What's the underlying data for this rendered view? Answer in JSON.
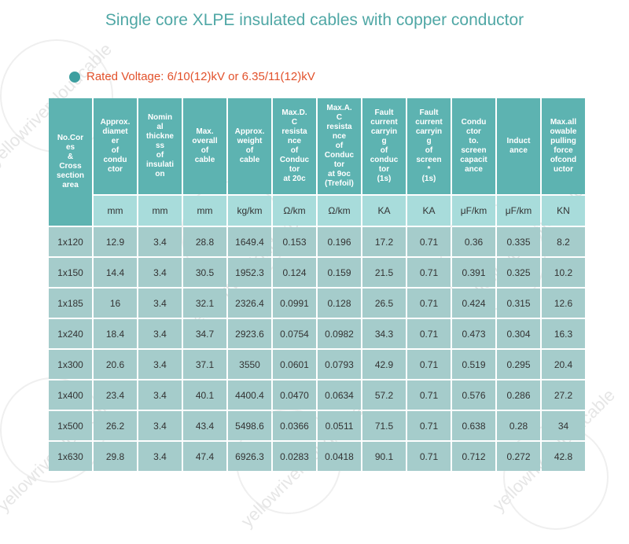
{
  "title": "Single core XLPE insulated cables with copper conductor",
  "rated_voltage": "Rated Voltage: 6/10(12)kV or 6.35/11(12)kV",
  "watermark": "yellowrivercloudcable",
  "colors": {
    "title": "#4fa7a5",
    "voltage": "#e2512b",
    "header_bg": "#5db3b1",
    "unit_bg": "#a8dcdb",
    "cell_bg": "#a5cccb",
    "bullet": "#3d9fa0"
  },
  "headers": [
    "No.Cores & Cross section area",
    "Approx. diameter of conductor",
    "Nominal thickness of insulation",
    "Max. overall of cable",
    "Approx. weight of cable",
    "Max.D.C resistance of Conductor at 20c",
    "Max.A.C resistance of Conductor at 9oc (Trefoil)",
    "Fault current carrying of conductor (1s)",
    "Fault current carrying of screen* (1s)",
    "Conductor to. screen capacitance",
    "Inductance",
    "Max.allowable pulling force ofconductor"
  ],
  "headers_display": [
    "No.Cor\nes\n&\nCross\nsection\narea",
    "Approx.\ndiamet\ner\nof\ncondu\nctor",
    "Nomin\nal\nthickne\nss\nof\ninsulati\non",
    "Max.\noverall\nof\ncable",
    "Approx.\nweight\nof\ncable",
    "Max.D.\nC\nresista\nnce\nof\nConduc\ntor\nat 20c",
    "Max.A.\nC\nresista\nnce\nof\nConduc\ntor\nat 9oc\n(Trefoil)",
    "Fault\ncurrent\ncarryin\ng\nof\nconduc\ntor\n(1s)",
    "Fault\ncurrent\ncarryin\ng\nof\nscreen\n*\n(1s)",
    "Condu\nctor\nto.\nscreen\ncapacit\nance",
    "Induct\nance",
    "Max.all\nowable\npulling\nforce\nofcond\nuctor"
  ],
  "units": [
    "mm",
    "mm",
    "mm",
    "kg/km",
    "Ω/km",
    "Ω/km",
    "KA",
    "KA",
    "μF/km",
    "μF/km",
    "KN"
  ],
  "rows": [
    [
      "1x120",
      "12.9",
      "3.4",
      "28.8",
      "1649.4",
      "0.153",
      "0.196",
      "17.2",
      "0.71",
      "0.36",
      "0.335",
      "8.2"
    ],
    [
      "1x150",
      "14.4",
      "3.4",
      "30.5",
      "1952.3",
      "0.124",
      "0.159",
      "21.5",
      "0.71",
      "0.391",
      "0.325",
      "10.2"
    ],
    [
      "1x185",
      "16",
      "3.4",
      "32.1",
      "2326.4",
      "0.0991",
      "0.128",
      "26.5",
      "0.71",
      "0.424",
      "0.315",
      "12.6"
    ],
    [
      "1x240",
      "18.4",
      "3.4",
      "34.7",
      "2923.6",
      "0.0754",
      "0.0982",
      "34.3",
      "0.71",
      "0.473",
      "0.304",
      "16.3"
    ],
    [
      "1x300",
      "20.6",
      "3.4",
      "37.1",
      "3550",
      "0.0601",
      "0.0793",
      "42.9",
      "0.71",
      "0.519",
      "0.295",
      "20.4"
    ],
    [
      "1x400",
      "23.4",
      "3.4",
      "40.1",
      "4400.4",
      "0.0470",
      "0.0634",
      "57.2",
      "0.71",
      "0.576",
      "0.286",
      "27.2"
    ],
    [
      "1x500",
      "26.2",
      "3.4",
      "43.4",
      "5498.6",
      "0.0366",
      "0.0511",
      "71.5",
      "0.71",
      "0.638",
      "0.28",
      "34"
    ],
    [
      "1x630",
      "29.8",
      "3.4",
      "47.4",
      "6926.3",
      "0.0283",
      "0.0418",
      "90.1",
      "0.71",
      "0.712",
      "0.272",
      "42.8"
    ]
  ]
}
